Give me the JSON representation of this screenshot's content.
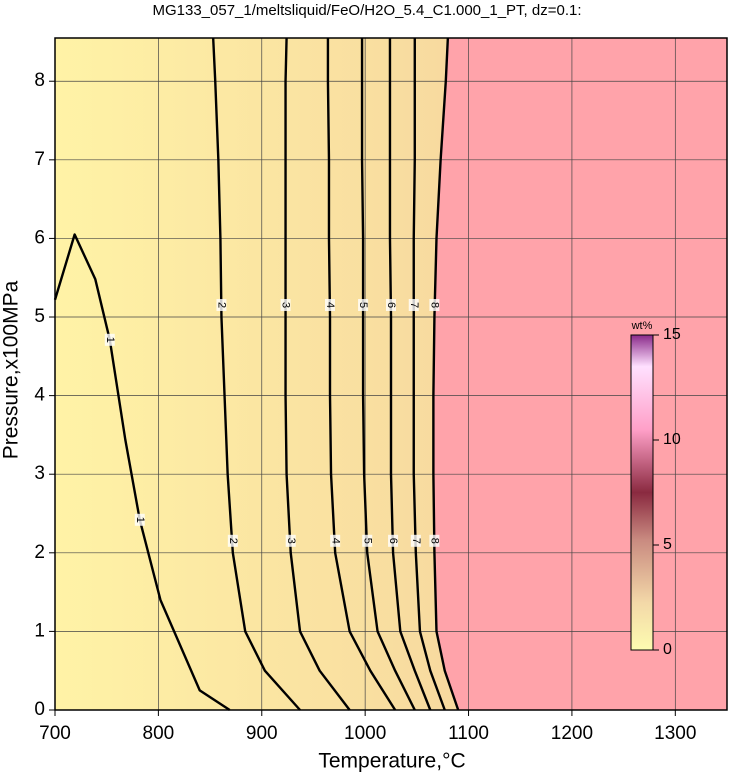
{
  "chart_data": {
    "type": "contour",
    "title": "MG133_057_1/meltsliquid/FeO/H2O_5.4_C1.000_1_PT, dz=0.1:",
    "x_label": "Temperature,°C",
    "y_label": "Pressure,x100MPa",
    "xlim": [
      700,
      1350
    ],
    "ylim": [
      0,
      8.55
    ],
    "xticks": [
      700,
      800,
      900,
      1000,
      1100,
      1200,
      1300
    ],
    "yticks": [
      0,
      1,
      2,
      3,
      4,
      5,
      6,
      7,
      8
    ],
    "grid": true,
    "colors": [
      "#fff3a6",
      "#f2c89a",
      "#ffa3aa"
    ],
    "contours": [
      {
        "level": 1,
        "x": [
          700,
          719,
          739,
          753,
          768,
          782,
          802,
          840,
          869
        ],
        "y": [
          5.22,
          6.05,
          5.48,
          4.71,
          3.44,
          2.42,
          1.4,
          0.25,
          0
        ]
      },
      {
        "level": 2,
        "x": [
          937,
          903,
          884,
          872,
          867,
          864,
          861,
          860,
          858,
          855,
          853
        ],
        "y": [
          0,
          0.5,
          1,
          2,
          3,
          4,
          5,
          6,
          7,
          8,
          8.55
        ]
      },
      {
        "level": 3,
        "x": [
          985,
          956,
          937,
          928,
          924,
          923,
          923,
          923,
          923,
          923,
          924
        ],
        "y": [
          0,
          0.5,
          1,
          2,
          3,
          4,
          5,
          6,
          7,
          8,
          8.55
        ]
      },
      {
        "level": 4,
        "x": [
          1029,
          1005,
          985,
          971,
          967,
          966,
          966,
          965,
          965,
          964,
          964
        ],
        "y": [
          0,
          0.5,
          1,
          2,
          3,
          4,
          5,
          6,
          7,
          8,
          8.55
        ]
      },
      {
        "level": 5,
        "x": [
          1048,
          1029,
          1012,
          1002,
          999,
          998,
          998,
          998,
          997,
          997,
          997
        ],
        "y": [
          0,
          0.5,
          1,
          2,
          3,
          4,
          5,
          6,
          7,
          8,
          8.55
        ]
      },
      {
        "level": 6,
        "x": [
          1063,
          1048,
          1034,
          1027,
          1025,
          1025,
          1025,
          1024,
          1024,
          1024,
          1024
        ],
        "y": [
          0,
          0.5,
          1,
          2,
          3,
          4,
          5,
          6,
          7,
          8,
          8.55
        ]
      },
      {
        "level": 7,
        "x": [
          1077,
          1063,
          1053,
          1049,
          1047,
          1047,
          1047,
          1047,
          1048,
          1048,
          1048
        ],
        "y": [
          0,
          0.5,
          1,
          2,
          3,
          4,
          5,
          6,
          7,
          8,
          8.55
        ]
      },
      {
        "level": 8,
        "x": [
          1090,
          1077,
          1069,
          1067,
          1066,
          1066,
          1067,
          1069,
          1073,
          1078,
          1080
        ],
        "y": [
          0,
          0.5,
          1,
          2,
          3,
          4,
          5,
          6,
          7,
          8,
          8.55
        ]
      }
    ],
    "colorbar": {
      "label": "wt%",
      "lim": [
        0,
        15
      ],
      "ticks": [
        0,
        5,
        10,
        15
      ]
    }
  }
}
